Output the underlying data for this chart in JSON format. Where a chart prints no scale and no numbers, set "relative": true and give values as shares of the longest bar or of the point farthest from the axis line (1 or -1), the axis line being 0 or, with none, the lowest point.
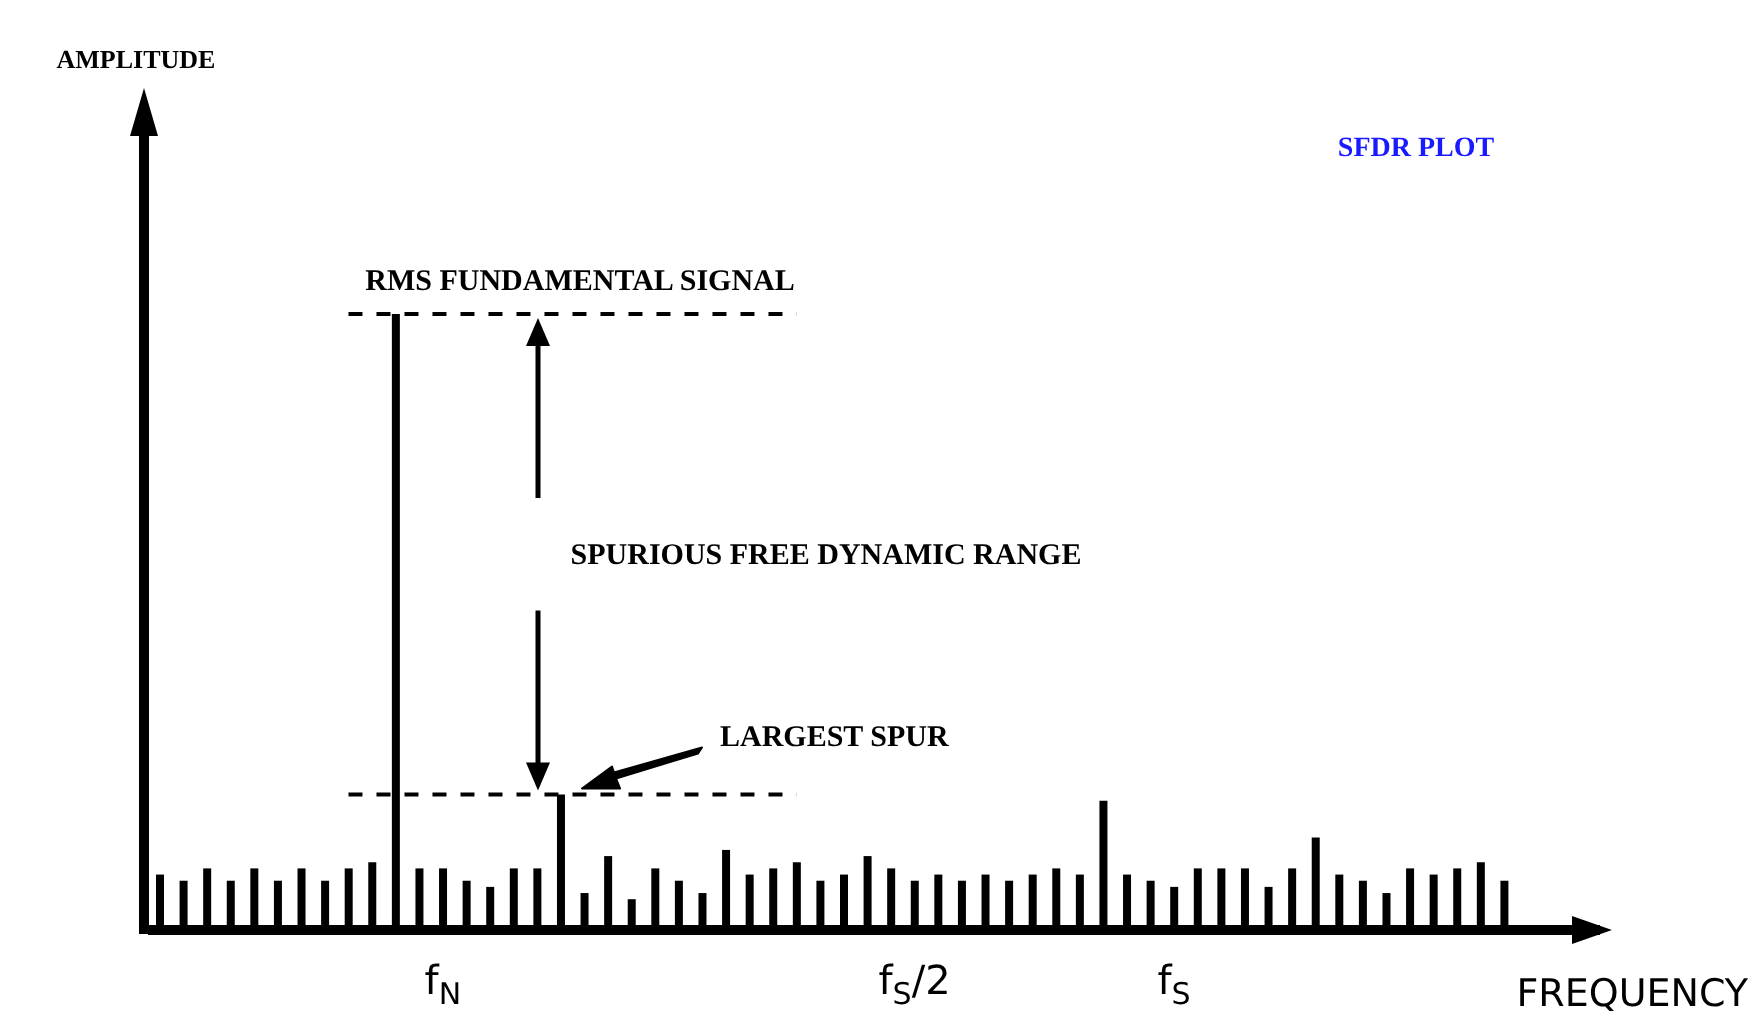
{
  "chart_data": {
    "type": "bar",
    "relative": true,
    "title": "SFDR PLOT",
    "xlabel": "FREQUENCY",
    "categories": [
      null,
      null,
      null,
      null,
      null,
      null,
      null,
      null,
      null,
      null,
      null,
      null,
      "f$_{N}$",
      null,
      null,
      null,
      null,
      null,
      null,
      null,
      null,
      null,
      null,
      null,
      null,
      null,
      null,
      null,
      null,
      null,
      null,
      null,
      "f$_{S}$/2",
      null,
      null,
      null,
      null,
      null,
      null,
      null,
      null,
      null,
      null,
      "f$_{S}$",
      null,
      null,
      null,
      null,
      null,
      null,
      null,
      null,
      null,
      null,
      null,
      null,
      null,
      null
    ],
    "values": [
      0.09,
      0.08,
      0.1,
      0.08,
      0.1,
      0.08,
      0.1,
      0.08,
      0.1,
      0.11,
      1,
      0.1,
      0.1,
      0.08,
      0.07,
      0.1,
      0.1,
      0.22,
      0.06,
      0.12,
      0.05,
      0.1,
      0.08,
      0.06,
      0.13,
      0.09,
      0.1,
      0.11,
      0.08,
      0.09,
      0.12,
      0.1,
      0.08,
      0.09,
      0.08,
      0.09,
      0.08,
      0.09,
      0.1,
      0.09,
      0.21,
      0.09,
      0.08,
      0.07,
      0.1,
      0.1,
      0.1,
      0.07,
      0.1,
      0.15,
      0.09,
      0.08,
      0.06,
      0.1,
      0.09,
      0.1,
      0.11,
      0.08
    ],
    "color": "#000000",
    "ref_lines": [
      {
        "axis": "y",
        "value": 1,
        "label": "RMS FUNDAMENTAL SIGNAL",
        "line_style": "dashed"
      },
      {
        "axis": "y",
        "value": 0.22,
        "line_style": "dashed"
      }
    ],
    "annotations": [
      "SPURIOUS FREE DYNAMIC RANGE",
      "LARGEST SPUR",
      "AMPLITUDE"
    ]
  }
}
